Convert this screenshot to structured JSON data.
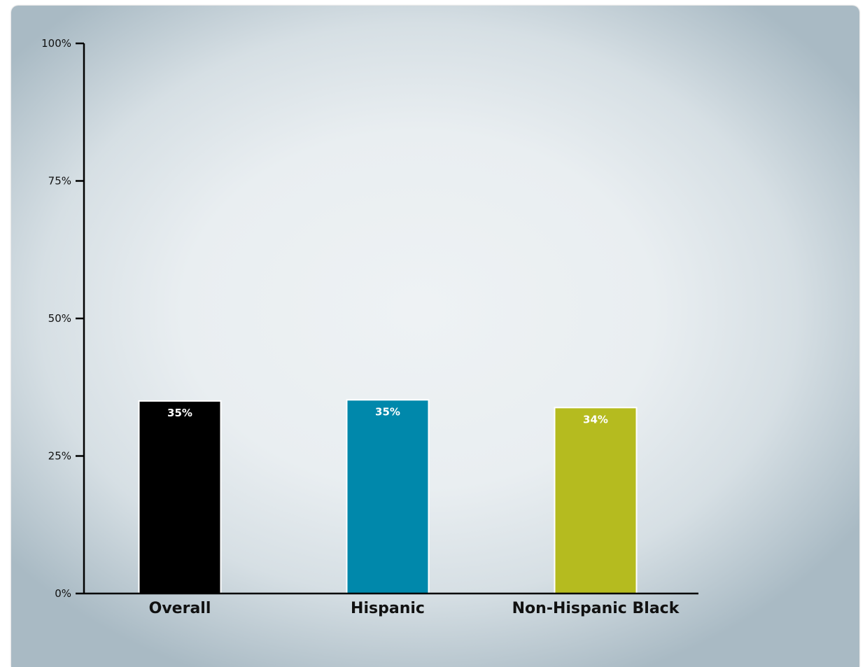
{
  "chart_data": {
    "type": "bar",
    "title": "",
    "xlabel": "",
    "ylabel": "",
    "ylim": [
      0,
      100
    ],
    "yticks": [
      "0%",
      "25%",
      "50%",
      "75%",
      "100%"
    ],
    "ytick_values": [
      0,
      25,
      50,
      75,
      100
    ],
    "categories": [
      "Overall",
      "Hispanic",
      "Non-Hispanic Black"
    ],
    "values": [
      35,
      35.2,
      33.8
    ],
    "value_labels": [
      "35%",
      "35%",
      "34%"
    ],
    "colors": [
      "#000000",
      "#0088ab",
      "#b5bb1f"
    ],
    "grid": false,
    "legend": "none"
  }
}
